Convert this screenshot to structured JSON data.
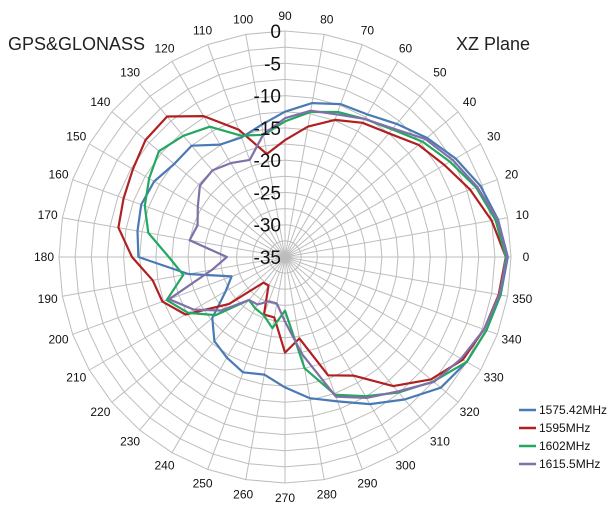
{
  "chart_data": {
    "type": "polar-line",
    "title": "GPS&GLONASS",
    "subtitle": "XZ Plane",
    "angle_labels": [
      "0",
      "10",
      "20",
      "30",
      "40",
      "50",
      "60",
      "70",
      "80",
      "90",
      "100",
      "110",
      "120",
      "130",
      "140",
      "150",
      "160",
      "170",
      "180",
      "190",
      "200",
      "210",
      "220",
      "230",
      "240",
      "250",
      "260",
      "270",
      "280",
      "290",
      "300",
      "310",
      "320",
      "330",
      "340",
      "350"
    ],
    "radial_labels": [
      "0",
      "-5",
      "-10",
      "-15",
      "-20",
      "-25",
      "-30",
      "-35"
    ],
    "rlim": [
      -35,
      0
    ],
    "radial_step": 2.5,
    "angle_step": 10,
    "grid": true,
    "legend_position": "bottom-right",
    "angles": [
      0,
      10,
      20,
      30,
      40,
      50,
      60,
      70,
      80,
      90,
      100,
      110,
      120,
      130,
      140,
      150,
      160,
      170,
      180,
      190,
      200,
      210,
      220,
      230,
      240,
      250,
      260,
      270,
      280,
      290,
      300,
      310,
      320,
      330,
      340,
      350
    ],
    "series": [
      {
        "name": "1575.42MHz",
        "color": "#4a7ab5",
        "values": [
          -0.5,
          -1.5,
          -2.8,
          -4.5,
          -6.3,
          -8.1,
          -9.5,
          -9.8,
          -10.8,
          -12.5,
          -14.2,
          -15.3,
          -14.9,
          -12.5,
          -12.6,
          -11.6,
          -11.3,
          -11.8,
          -12.3,
          -19.8,
          -26.2,
          -24.4,
          -20.3,
          -18,
          -17,
          -16,
          -16.5,
          -14.8,
          -12.8,
          -11.2,
          -8.7,
          -6.2,
          -3.5,
          -2.5,
          -1.8,
          -1.1
        ]
      },
      {
        "name": "1595MHz",
        "color": "#b02020",
        "values": [
          -0.8,
          -2.5,
          -4.5,
          -6.5,
          -8,
          -10,
          -11,
          -12.4,
          -14.5,
          -16.9,
          -18.8,
          -14,
          -9.8,
          -6.6,
          -6.8,
          -7.8,
          -8.4,
          -8.8,
          -11.3,
          -14.2,
          -14.8,
          -17.2,
          -23.7,
          -29.8,
          -29.9,
          -25.5,
          -25.5,
          -20.2,
          -22.2,
          -15.5,
          -13.8,
          -8.9,
          -5.5,
          -3.2,
          -2.2,
          -1.4
        ]
      },
      {
        "name": "1602MHz",
        "color": "#22a860",
        "values": [
          -0.8,
          -1.9,
          -3.5,
          -5.5,
          -7.2,
          -9.2,
          -10.3,
          -11.1,
          -12.2,
          -14,
          -15.8,
          -15,
          -11.7,
          -10.5,
          -9.5,
          -10.7,
          -11.9,
          -13.5,
          -17,
          -19,
          -15.5,
          -17.7,
          -21,
          -26.3,
          -25.8,
          -25.4,
          -23.8,
          -26.7,
          -17.5,
          -12.3,
          -10.1,
          -7.6,
          -5,
          -2.5,
          -1.8,
          -1.1
        ]
      },
      {
        "name": "1615.5MHz",
        "color": "#8070a8",
        "values": [
          -0.6,
          -1.6,
          -3.3,
          -5,
          -6.6,
          -9,
          -10.3,
          -11.5,
          -12,
          -13.5,
          -15.7,
          -19,
          -18.2,
          -17.5,
          -17.8,
          -19.4,
          -20.6,
          -20,
          -26,
          -23.5,
          -15.9,
          -18.7,
          -22.1,
          -26.3,
          -26.5,
          -27.7,
          -27.7,
          -25,
          -19.7,
          -12,
          -9.8,
          -7.8,
          -4.9,
          -3.5,
          -2.2,
          -1.3
        ]
      }
    ]
  }
}
